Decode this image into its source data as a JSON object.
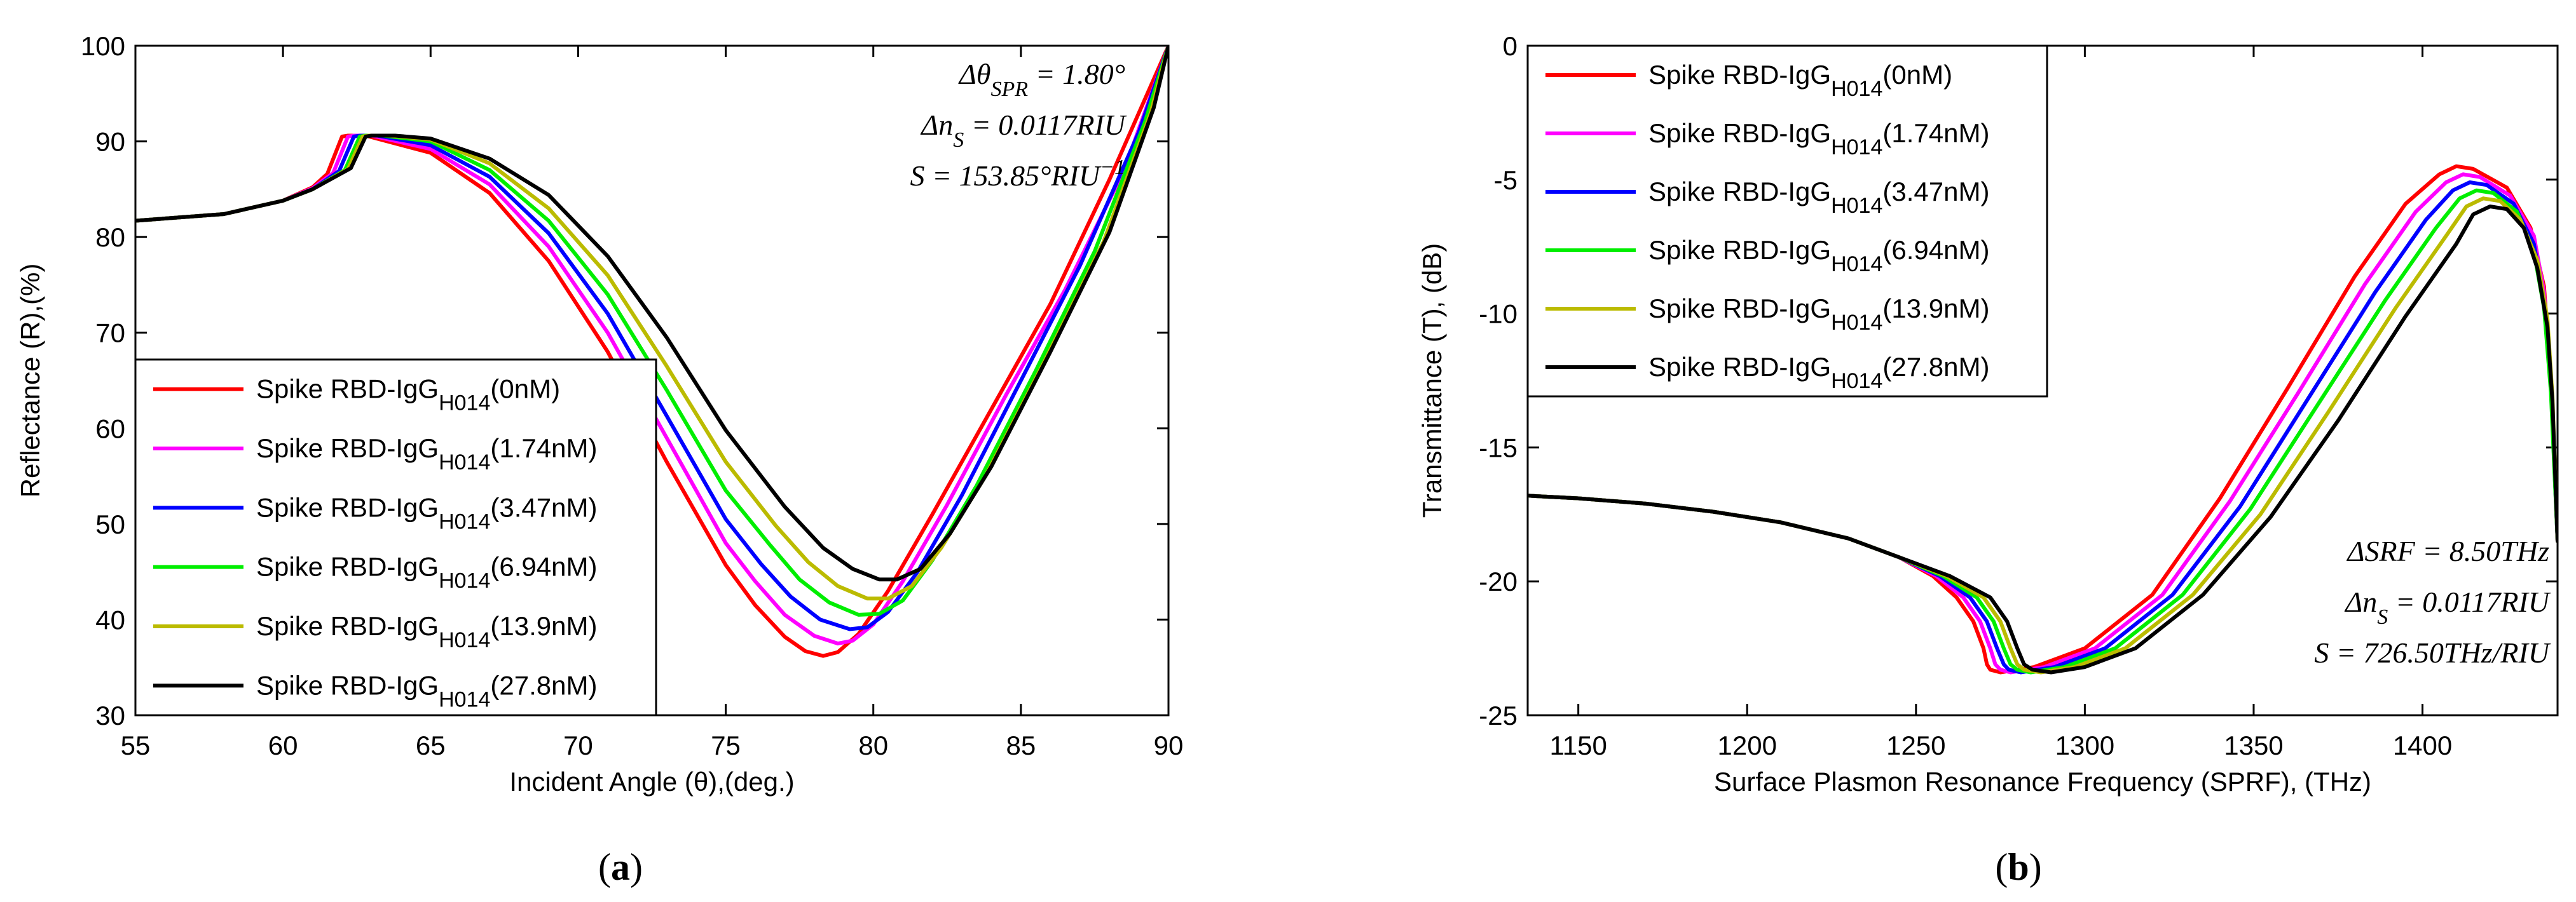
{
  "chart_data": [
    {
      "type": "line",
      "panel_label": "a",
      "title": "",
      "xlabel": "Incident Angle (θ),(deg.)",
      "ylabel": "Reflectance (R),(%)",
      "xlim": [
        55,
        90
      ],
      "ylim": [
        30,
        100
      ],
      "xticks": [
        55,
        60,
        65,
        70,
        75,
        80,
        85,
        90
      ],
      "yticks": [
        30,
        40,
        50,
        60,
        70,
        80,
        90,
        100
      ],
      "grid": false,
      "legend_position": "bottom-left",
      "annotations": [
        {
          "lines": [
            {
              "main": "Δθ",
              "sub": "SPR",
              "rest": " = 1.80°",
              "sup": ""
            },
            {
              "main": "Δn",
              "sub": "S",
              "rest": " = 0.0117RIU",
              "sup": ""
            },
            {
              "main": "S",
              "sub": "",
              "rest": " = 153.85°RIU",
              "sup": "−1"
            }
          ],
          "position": "top-right"
        }
      ],
      "series": [
        {
          "name": "Spike RBD-IgG",
          "sub": "H014",
          "conc": "(0nM)",
          "color": "#ff0000",
          "x": [
            55,
            58,
            60,
            61,
            61.5,
            62,
            62.2,
            62.8,
            65,
            67,
            69,
            71,
            73,
            75,
            76,
            77,
            77.7,
            78.3,
            78.8,
            79.5,
            80.5,
            82,
            84,
            86,
            88,
            90
          ],
          "y": [
            81.7,
            82.4,
            83.8,
            85.2,
            86.6,
            90.5,
            90.6,
            90.6,
            88.8,
            84.6,
            77.5,
            68.0,
            56.5,
            45.7,
            41.5,
            38.2,
            36.7,
            36.2,
            36.6,
            38.5,
            43.0,
            51.0,
            62.0,
            73.0,
            86.0,
            100
          ]
        },
        {
          "name": "Spike RBD-IgG",
          "sub": "H014",
          "conc": "(1.74nM)",
          "color": "#ff00ff",
          "x": [
            55,
            58,
            60,
            61,
            61.7,
            62.2,
            62.4,
            63,
            65,
            67,
            69,
            71,
            73,
            75,
            76,
            77,
            78,
            78.8,
            79.3,
            80,
            81,
            82.5,
            84.5,
            86.5,
            88.5,
            90
          ],
          "y": [
            81.7,
            82.4,
            83.8,
            85.1,
            86.7,
            90.5,
            90.6,
            90.6,
            89.2,
            85.5,
            79.0,
            70.0,
            59.0,
            48.0,
            44.0,
            40.5,
            38.3,
            37.5,
            37.8,
            39.5,
            44.0,
            52.0,
            63.5,
            74.5,
            87.0,
            100
          ]
        },
        {
          "name": "Spike RBD-IgG",
          "sub": "H014",
          "conc": "(3.47nM)",
          "color": "#0000ff",
          "x": [
            55,
            58,
            60,
            61,
            61.9,
            62.4,
            62.6,
            63.2,
            65,
            67,
            69,
            71,
            73,
            75,
            76.2,
            77.2,
            78.2,
            79.2,
            79.8,
            80.5,
            81.5,
            83,
            85,
            87,
            89,
            90
          ],
          "y": [
            81.7,
            82.4,
            83.8,
            85.0,
            86.9,
            90.5,
            90.6,
            90.6,
            89.6,
            86.3,
            80.4,
            72.0,
            61.3,
            50.5,
            45.8,
            42.4,
            40.0,
            39.0,
            39.2,
            40.8,
            45.0,
            53.0,
            65.0,
            77.0,
            91.0,
            100
          ]
        },
        {
          "name": "Spike RBD-IgG",
          "sub": "H014",
          "conc": "(6.94nM)",
          "color": "#00ee00",
          "x": [
            55,
            58,
            60,
            61,
            62.1,
            62.6,
            62.8,
            63.4,
            65,
            67,
            69,
            71,
            73,
            75,
            76.5,
            77.5,
            78.5,
            79.5,
            80.2,
            81,
            82,
            83.5,
            85.5,
            87.5,
            89.2,
            90
          ],
          "y": [
            81.7,
            82.4,
            83.8,
            85.0,
            87.0,
            90.5,
            90.6,
            90.6,
            90.0,
            87.0,
            81.7,
            74.0,
            64.0,
            53.5,
            47.8,
            44.2,
            41.8,
            40.5,
            40.6,
            42.0,
            46.2,
            54.0,
            66.0,
            78.5,
            92.0,
            100
          ]
        },
        {
          "name": "Spike RBD-IgG",
          "sub": "H014",
          "conc": "(13.9nM)",
          "color": "#bbbb00",
          "x": [
            55,
            58,
            60,
            61,
            62.2,
            62.7,
            62.9,
            63.6,
            65,
            67,
            69,
            71,
            73,
            75,
            76.7,
            77.8,
            78.8,
            79.8,
            80.5,
            81.3,
            82.3,
            83.8,
            85.8,
            87.8,
            89.4,
            90
          ],
          "y": [
            81.7,
            82.4,
            83.8,
            85.0,
            87.1,
            90.5,
            90.6,
            90.6,
            90.2,
            87.7,
            83.0,
            76.0,
            66.5,
            56.5,
            49.8,
            46.0,
            43.5,
            42.2,
            42.2,
            43.5,
            47.5,
            55.0,
            67.0,
            79.5,
            93.0,
            100
          ]
        },
        {
          "name": "Spike RBD-IgG",
          "sub": "H014",
          "conc": "(27.8nM)",
          "color": "#000000",
          "x": [
            55,
            58,
            60,
            61,
            62.3,
            62.8,
            63,
            63.8,
            65,
            67,
            69,
            71,
            73,
            75,
            77,
            78.3,
            79.3,
            80.2,
            80.8,
            81.6,
            82.6,
            84,
            86,
            88,
            89.5,
            90
          ],
          "y": [
            81.7,
            82.4,
            83.8,
            85.0,
            87.2,
            90.5,
            90.6,
            90.6,
            90.3,
            88.2,
            84.4,
            78.0,
            69.5,
            59.8,
            51.8,
            47.5,
            45.3,
            44.2,
            44.2,
            45.3,
            49.0,
            56.0,
            68.0,
            80.5,
            93.5,
            100
          ]
        }
      ]
    },
    {
      "type": "line",
      "panel_label": "b",
      "title": "",
      "xlabel": "Surface Plasmon Resonance Frequency (SPRF), (THz)",
      "ylabel": "Transmittance (T), (dB)",
      "xlim": [
        1135,
        1440
      ],
      "ylim": [
        -25,
        0
      ],
      "xticks": [
        1150,
        1200,
        1250,
        1300,
        1350,
        1400
      ],
      "yticks": [
        -25,
        -20,
        -15,
        -10,
        -5,
        0
      ],
      "grid": false,
      "legend_position": "top-left",
      "annotations": [
        {
          "lines": [
            {
              "main": "ΔSRF",
              "sub": "",
              "rest": " = 8.50THz",
              "sup": ""
            },
            {
              "main": "Δn",
              "sub": "S",
              "rest": " = 0.0117RIU",
              "sup": ""
            },
            {
              "main": "S",
              "sub": "",
              "rest": " = 726.50THz/RIU",
              "sup": ""
            }
          ],
          "position": "bottom-right"
        }
      ],
      "series": [
        {
          "name": "Spike RBD-IgG",
          "sub": "H014",
          "conc": "(0nM)",
          "color": "#ff0000",
          "x": [
            1135,
            1150,
            1170,
            1190,
            1210,
            1230,
            1245,
            1255,
            1262,
            1267,
            1270,
            1271,
            1272,
            1275,
            1285,
            1300,
            1320,
            1340,
            1360,
            1380,
            1395,
            1405,
            1410,
            1415,
            1425,
            1432,
            1436,
            1438,
            1440
          ],
          "y": [
            -16.8,
            -16.9,
            -17.1,
            -17.4,
            -17.8,
            -18.4,
            -19.1,
            -19.8,
            -20.6,
            -21.5,
            -22.5,
            -23.1,
            -23.3,
            -23.4,
            -23.2,
            -22.5,
            -20.5,
            -16.9,
            -12.8,
            -8.6,
            -5.9,
            -4.8,
            -4.5,
            -4.6,
            -5.3,
            -6.8,
            -9.0,
            -12.5,
            -18.5
          ]
        },
        {
          "name": "Spike RBD-IgG",
          "sub": "H014",
          "conc": "(1.74nM)",
          "color": "#ff00ff",
          "x": [
            1135,
            1150,
            1170,
            1190,
            1210,
            1230,
            1245,
            1256,
            1264,
            1269,
            1272,
            1273.5,
            1275,
            1278,
            1288,
            1303,
            1323,
            1343,
            1363,
            1383,
            1398,
            1407,
            1412,
            1417,
            1426,
            1433,
            1436,
            1438,
            1440
          ],
          "y": [
            -16.8,
            -16.9,
            -17.1,
            -17.4,
            -17.8,
            -18.4,
            -19.1,
            -19.8,
            -20.6,
            -21.5,
            -22.5,
            -23.1,
            -23.3,
            -23.4,
            -23.2,
            -22.5,
            -20.5,
            -17.0,
            -13.0,
            -8.9,
            -6.2,
            -5.1,
            -4.8,
            -4.9,
            -5.6,
            -7.1,
            -9.2,
            -12.5,
            -18.5
          ]
        },
        {
          "name": "Spike RBD-IgG",
          "sub": "H014",
          "conc": "(3.47nM)",
          "color": "#0000ff",
          "x": [
            1135,
            1150,
            1170,
            1190,
            1210,
            1230,
            1245,
            1257,
            1266,
            1271,
            1274,
            1276,
            1277.5,
            1281,
            1291,
            1306,
            1326,
            1346,
            1366,
            1386,
            1401,
            1409,
            1414,
            1419,
            1427,
            1433,
            1436,
            1438,
            1440
          ],
          "y": [
            -16.8,
            -16.9,
            -17.1,
            -17.4,
            -17.8,
            -18.4,
            -19.1,
            -19.8,
            -20.6,
            -21.5,
            -22.5,
            -23.1,
            -23.3,
            -23.4,
            -23.2,
            -22.5,
            -20.5,
            -17.2,
            -13.2,
            -9.2,
            -6.5,
            -5.4,
            -5.1,
            -5.2,
            -5.9,
            -7.4,
            -9.5,
            -12.7,
            -18.5
          ]
        },
        {
          "name": "Spike RBD-IgG",
          "sub": "H014",
          "conc": "(6.94nM)",
          "color": "#00ee00",
          "x": [
            1135,
            1150,
            1170,
            1190,
            1210,
            1230,
            1245,
            1258,
            1268,
            1273,
            1276,
            1278,
            1280,
            1284,
            1294,
            1309,
            1329,
            1349,
            1369,
            1389,
            1404,
            1411,
            1416,
            1421,
            1428,
            1433,
            1436,
            1438,
            1440
          ],
          "y": [
            -16.8,
            -16.9,
            -17.1,
            -17.4,
            -17.8,
            -18.4,
            -19.1,
            -19.8,
            -20.6,
            -21.5,
            -22.5,
            -23.1,
            -23.3,
            -23.4,
            -23.2,
            -22.5,
            -20.5,
            -17.3,
            -13.4,
            -9.5,
            -6.8,
            -5.7,
            -5.4,
            -5.5,
            -6.2,
            -7.7,
            -9.8,
            -12.9,
            -18.5
          ]
        },
        {
          "name": "Spike RBD-IgG",
          "sub": "H014",
          "conc": "(13.9nM)",
          "color": "#bbbb00",
          "x": [
            1135,
            1150,
            1170,
            1190,
            1210,
            1230,
            1245,
            1259,
            1270,
            1275,
            1278,
            1280,
            1282,
            1287,
            1297,
            1312,
            1332,
            1352,
            1372,
            1392,
            1407,
            1413,
            1418,
            1423,
            1429,
            1434,
            1437,
            1438.5,
            1440
          ],
          "y": [
            -16.8,
            -16.9,
            -17.1,
            -17.4,
            -17.8,
            -18.4,
            -19.1,
            -19.8,
            -20.6,
            -21.5,
            -22.5,
            -23.1,
            -23.3,
            -23.4,
            -23.2,
            -22.5,
            -20.5,
            -17.5,
            -13.7,
            -9.8,
            -7.1,
            -6.0,
            -5.7,
            -5.8,
            -6.5,
            -8.0,
            -10.2,
            -13.1,
            -18.5
          ]
        },
        {
          "name": "Spike RBD-IgG",
          "sub": "H014",
          "conc": "(27.8nM)",
          "color": "#000000",
          "x": [
            1135,
            1150,
            1170,
            1190,
            1210,
            1230,
            1245,
            1260,
            1272,
            1277,
            1280,
            1282,
            1284.5,
            1290,
            1300,
            1315,
            1335,
            1355,
            1375,
            1395,
            1410,
            1415,
            1420,
            1425,
            1430,
            1434,
            1437,
            1438.5,
            1440
          ],
          "y": [
            -16.8,
            -16.9,
            -17.1,
            -17.4,
            -17.8,
            -18.4,
            -19.1,
            -19.8,
            -20.6,
            -21.5,
            -22.5,
            -23.1,
            -23.3,
            -23.4,
            -23.2,
            -22.5,
            -20.5,
            -17.6,
            -14.0,
            -10.1,
            -7.4,
            -6.3,
            -6.0,
            -6.1,
            -6.8,
            -8.3,
            -10.5,
            -13.3,
            -18.5
          ]
        }
      ]
    }
  ]
}
